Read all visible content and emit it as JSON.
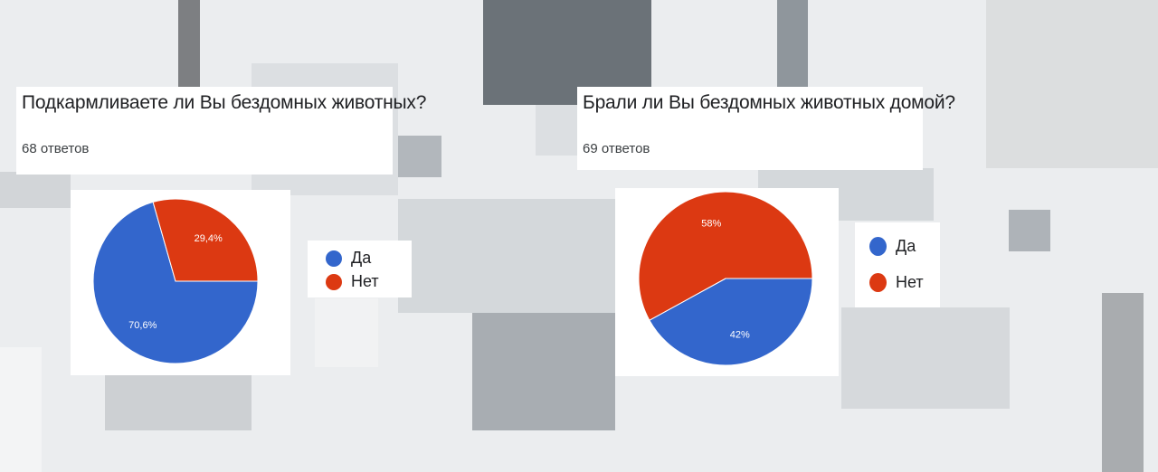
{
  "colors": {
    "yes": "#3366cc",
    "no": "#dc3912",
    "label_text": "#ffffff",
    "slice_border": "#ffffff"
  },
  "chart_data": [
    {
      "type": "pie",
      "title": "Подкармливаете ли Вы бездомных животных?",
      "responses": "68 ответов",
      "categories": [
        "Да",
        "Нет"
      ],
      "values": [
        70.6,
        29.4
      ],
      "data_labels": [
        "70,6%",
        "29,4%"
      ],
      "legend": [
        "Да",
        "Нет"
      ],
      "legend_position": "right"
    },
    {
      "type": "pie",
      "title": "Брали ли Вы бездомных животных домой?",
      "responses": "69 ответов",
      "categories": [
        "Да",
        "Нет"
      ],
      "values": [
        42,
        58
      ],
      "data_labels": [
        "42%",
        "58%"
      ],
      "legend": [
        "Да",
        "Нет"
      ],
      "legend_position": "right"
    }
  ]
}
